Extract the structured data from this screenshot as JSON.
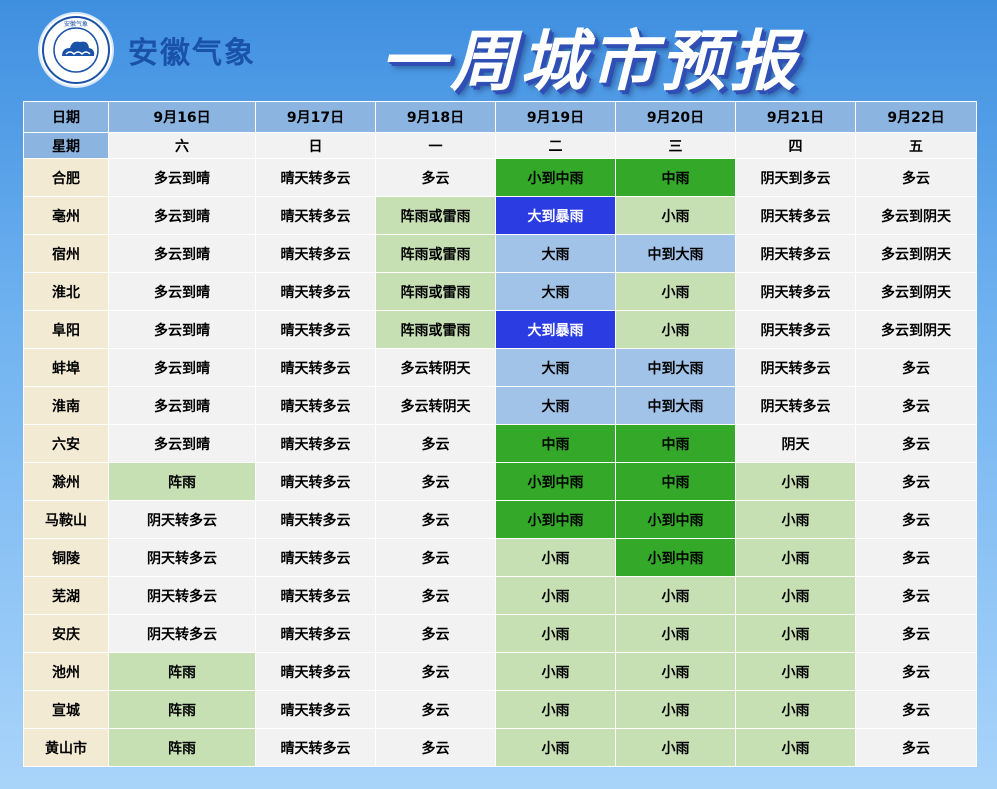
{
  "header": {
    "logo_ring_text": "安徽气象",
    "org_name": "安徽气象",
    "title": "一周城市预报"
  },
  "colors": {
    "moderate_rain": "#33a829",
    "light_rain": "#c6e0b4",
    "heavy_rain": "#a2c3e8",
    "rainstorm": "#2b3de2"
  },
  "table": {
    "date_label": "日期",
    "week_label": "星期",
    "dates": [
      "9月16日",
      "9月17日",
      "9月18日",
      "9月19日",
      "9月20日",
      "9月21日",
      "9月22日"
    ],
    "weekdays": [
      "六",
      "日",
      "一",
      "二",
      "三",
      "四",
      "五"
    ],
    "rows": [
      {
        "city": "合肥",
        "cells": [
          {
            "t": "多云到晴",
            "c": ""
          },
          {
            "t": "晴天转多云",
            "c": ""
          },
          {
            "t": "多云",
            "c": ""
          },
          {
            "t": "小到中雨",
            "c": "dgreen"
          },
          {
            "t": "中雨",
            "c": "dgreen"
          },
          {
            "t": "阴天到多云",
            "c": ""
          },
          {
            "t": "多云",
            "c": ""
          }
        ]
      },
      {
        "city": "亳州",
        "cells": [
          {
            "t": "多云到晴",
            "c": ""
          },
          {
            "t": "晴天转多云",
            "c": ""
          },
          {
            "t": "阵雨或雷雨",
            "c": "lgreen"
          },
          {
            "t": "大到暴雨",
            "c": "blue"
          },
          {
            "t": "小雨",
            "c": "lgreen"
          },
          {
            "t": "阴天转多云",
            "c": ""
          },
          {
            "t": "多云到阴天",
            "c": ""
          }
        ]
      },
      {
        "city": "宿州",
        "cells": [
          {
            "t": "多云到晴",
            "c": ""
          },
          {
            "t": "晴天转多云",
            "c": ""
          },
          {
            "t": "阵雨或雷雨",
            "c": "lgreen"
          },
          {
            "t": "大雨",
            "c": "lblue"
          },
          {
            "t": "中到大雨",
            "c": "lblue"
          },
          {
            "t": "阴天转多云",
            "c": ""
          },
          {
            "t": "多云到阴天",
            "c": ""
          }
        ]
      },
      {
        "city": "淮北",
        "cells": [
          {
            "t": "多云到晴",
            "c": ""
          },
          {
            "t": "晴天转多云",
            "c": ""
          },
          {
            "t": "阵雨或雷雨",
            "c": "lgreen"
          },
          {
            "t": "大雨",
            "c": "lblue"
          },
          {
            "t": "小雨",
            "c": "lgreen"
          },
          {
            "t": "阴天转多云",
            "c": ""
          },
          {
            "t": "多云到阴天",
            "c": ""
          }
        ]
      },
      {
        "city": "阜阳",
        "cells": [
          {
            "t": "多云到晴",
            "c": ""
          },
          {
            "t": "晴天转多云",
            "c": ""
          },
          {
            "t": "阵雨或雷雨",
            "c": "lgreen"
          },
          {
            "t": "大到暴雨",
            "c": "blue"
          },
          {
            "t": "小雨",
            "c": "lgreen"
          },
          {
            "t": "阴天转多云",
            "c": ""
          },
          {
            "t": "多云到阴天",
            "c": ""
          }
        ]
      },
      {
        "city": "蚌埠",
        "cells": [
          {
            "t": "多云到晴",
            "c": ""
          },
          {
            "t": "晴天转多云",
            "c": ""
          },
          {
            "t": "多云转阴天",
            "c": ""
          },
          {
            "t": "大雨",
            "c": "lblue"
          },
          {
            "t": "中到大雨",
            "c": "lblue"
          },
          {
            "t": "阴天转多云",
            "c": ""
          },
          {
            "t": "多云",
            "c": ""
          }
        ]
      },
      {
        "city": "淮南",
        "cells": [
          {
            "t": "多云到晴",
            "c": ""
          },
          {
            "t": "晴天转多云",
            "c": ""
          },
          {
            "t": "多云转阴天",
            "c": ""
          },
          {
            "t": "大雨",
            "c": "lblue"
          },
          {
            "t": "中到大雨",
            "c": "lblue"
          },
          {
            "t": "阴天转多云",
            "c": ""
          },
          {
            "t": "多云",
            "c": ""
          }
        ]
      },
      {
        "city": "六安",
        "cells": [
          {
            "t": "多云到晴",
            "c": ""
          },
          {
            "t": "晴天转多云",
            "c": ""
          },
          {
            "t": "多云",
            "c": ""
          },
          {
            "t": "中雨",
            "c": "dgreen"
          },
          {
            "t": "中雨",
            "c": "dgreen"
          },
          {
            "t": "阴天",
            "c": ""
          },
          {
            "t": "多云",
            "c": ""
          }
        ]
      },
      {
        "city": "滁州",
        "cells": [
          {
            "t": "阵雨",
            "c": "lgreen"
          },
          {
            "t": "晴天转多云",
            "c": ""
          },
          {
            "t": "多云",
            "c": ""
          },
          {
            "t": "小到中雨",
            "c": "dgreen"
          },
          {
            "t": "中雨",
            "c": "dgreen"
          },
          {
            "t": "小雨",
            "c": "lgreen"
          },
          {
            "t": "多云",
            "c": ""
          }
        ]
      },
      {
        "city": "马鞍山",
        "cells": [
          {
            "t": "阴天转多云",
            "c": ""
          },
          {
            "t": "晴天转多云",
            "c": ""
          },
          {
            "t": "多云",
            "c": ""
          },
          {
            "t": "小到中雨",
            "c": "dgreen"
          },
          {
            "t": "小到中雨",
            "c": "dgreen"
          },
          {
            "t": "小雨",
            "c": "lgreen"
          },
          {
            "t": "多云",
            "c": ""
          }
        ]
      },
      {
        "city": "铜陵",
        "cells": [
          {
            "t": "阴天转多云",
            "c": ""
          },
          {
            "t": "晴天转多云",
            "c": ""
          },
          {
            "t": "多云",
            "c": ""
          },
          {
            "t": "小雨",
            "c": "lgreen"
          },
          {
            "t": "小到中雨",
            "c": "dgreen"
          },
          {
            "t": "小雨",
            "c": "lgreen"
          },
          {
            "t": "多云",
            "c": ""
          }
        ]
      },
      {
        "city": "芜湖",
        "cells": [
          {
            "t": "阴天转多云",
            "c": ""
          },
          {
            "t": "晴天转多云",
            "c": ""
          },
          {
            "t": "多云",
            "c": ""
          },
          {
            "t": "小雨",
            "c": "lgreen"
          },
          {
            "t": "小雨",
            "c": "lgreen"
          },
          {
            "t": "小雨",
            "c": "lgreen"
          },
          {
            "t": "多云",
            "c": ""
          }
        ]
      },
      {
        "city": "安庆",
        "cells": [
          {
            "t": "阴天转多云",
            "c": ""
          },
          {
            "t": "晴天转多云",
            "c": ""
          },
          {
            "t": "多云",
            "c": ""
          },
          {
            "t": "小雨",
            "c": "lgreen"
          },
          {
            "t": "小雨",
            "c": "lgreen"
          },
          {
            "t": "小雨",
            "c": "lgreen"
          },
          {
            "t": "多云",
            "c": ""
          }
        ]
      },
      {
        "city": "池州",
        "cells": [
          {
            "t": "阵雨",
            "c": "lgreen"
          },
          {
            "t": "晴天转多云",
            "c": ""
          },
          {
            "t": "多云",
            "c": ""
          },
          {
            "t": "小雨",
            "c": "lgreen"
          },
          {
            "t": "小雨",
            "c": "lgreen"
          },
          {
            "t": "小雨",
            "c": "lgreen"
          },
          {
            "t": "多云",
            "c": ""
          }
        ]
      },
      {
        "city": "宣城",
        "cells": [
          {
            "t": "阵雨",
            "c": "lgreen"
          },
          {
            "t": "晴天转多云",
            "c": ""
          },
          {
            "t": "多云",
            "c": ""
          },
          {
            "t": "小雨",
            "c": "lgreen"
          },
          {
            "t": "小雨",
            "c": "lgreen"
          },
          {
            "t": "小雨",
            "c": "lgreen"
          },
          {
            "t": "多云",
            "c": ""
          }
        ]
      },
      {
        "city": "黄山市",
        "cells": [
          {
            "t": "阵雨",
            "c": "lgreen"
          },
          {
            "t": "晴天转多云",
            "c": ""
          },
          {
            "t": "多云",
            "c": ""
          },
          {
            "t": "小雨",
            "c": "lgreen"
          },
          {
            "t": "小雨",
            "c": "lgreen"
          },
          {
            "t": "小雨",
            "c": "lgreen"
          },
          {
            "t": "多云",
            "c": ""
          }
        ]
      }
    ]
  }
}
